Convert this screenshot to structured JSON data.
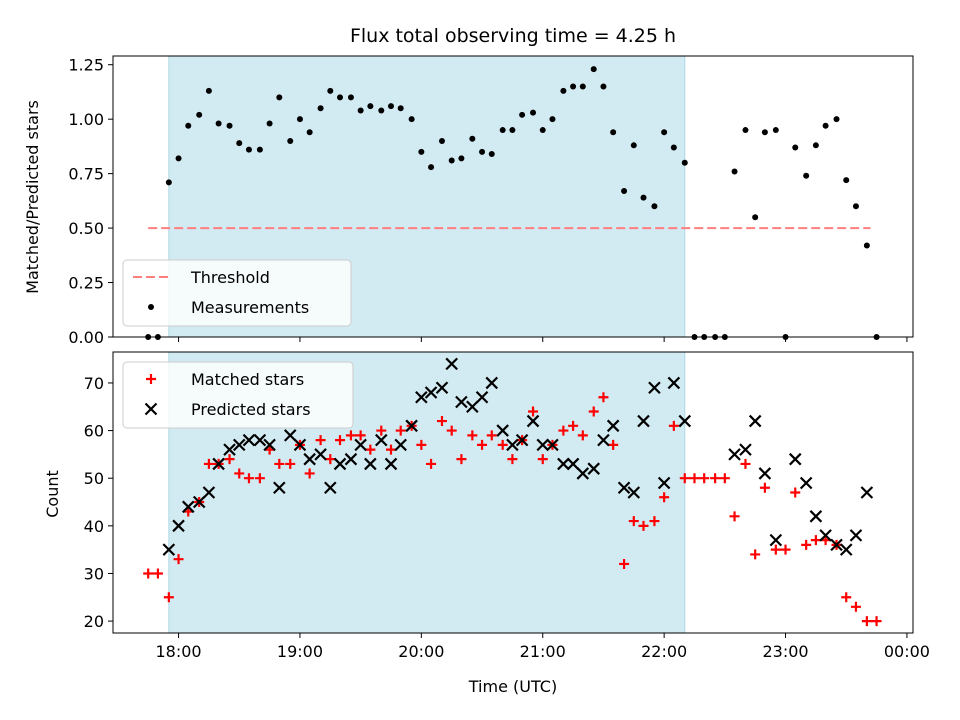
{
  "chart_data": {
    "title": "Flux total observing time = 4.25 h",
    "xlabel": "Time (UTC)",
    "x_ticks": [
      "18:00",
      "19:00",
      "20:00",
      "21:00",
      "22:00",
      "23:00",
      "00:00"
    ],
    "x_tick_hours": [
      18,
      19,
      20,
      21,
      22,
      23,
      24
    ],
    "xlim_hours": [
      17.46,
      24.05
    ],
    "shaded_interval_hours": [
      17.92,
      22.17
    ],
    "colors": {
      "threshold": "#ff7f7f",
      "measurements": "#000000",
      "matched": "#ff0000",
      "predicted": "#000000",
      "shade": "#add8e6"
    },
    "panels": [
      {
        "type": "scatter",
        "ylabel": "Matched/Predicted stars",
        "ylim": [
          0,
          1.29
        ],
        "y_ticks": [
          "0.00",
          "0.25",
          "0.50",
          "0.75",
          "1.00",
          "1.25"
        ],
        "y_tick_values": [
          0,
          0.25,
          0.5,
          0.75,
          1.0,
          1.25
        ],
        "legend_position": "lower-left",
        "threshold": {
          "name": "Threshold",
          "value": 0.5,
          "x_range_hours": [
            17.75,
            23.7
          ]
        },
        "series": [
          {
            "name": "Measurements",
            "points": [
              [
                17.75,
                0.0
              ],
              [
                17.83,
                0.0
              ],
              [
                17.92,
                0.71
              ],
              [
                18.0,
                0.82
              ],
              [
                18.08,
                0.97
              ],
              [
                18.17,
                1.02
              ],
              [
                18.25,
                1.13
              ],
              [
                18.33,
                0.98
              ],
              [
                18.42,
                0.97
              ],
              [
                18.5,
                0.89
              ],
              [
                18.58,
                0.86
              ],
              [
                18.67,
                0.86
              ],
              [
                18.75,
                0.98
              ],
              [
                18.83,
                1.1
              ],
              [
                18.92,
                0.9
              ],
              [
                19.0,
                1.0
              ],
              [
                19.08,
                0.94
              ],
              [
                19.17,
                1.05
              ],
              [
                19.25,
                1.13
              ],
              [
                19.33,
                1.1
              ],
              [
                19.42,
                1.1
              ],
              [
                19.5,
                1.04
              ],
              [
                19.58,
                1.06
              ],
              [
                19.67,
                1.04
              ],
              [
                19.75,
                1.06
              ],
              [
                19.83,
                1.05
              ],
              [
                19.92,
                1.0
              ],
              [
                20.0,
                0.85
              ],
              [
                20.08,
                0.78
              ],
              [
                20.17,
                0.9
              ],
              [
                20.25,
                0.81
              ],
              [
                20.33,
                0.82
              ],
              [
                20.42,
                0.91
              ],
              [
                20.5,
                0.85
              ],
              [
                20.58,
                0.84
              ],
              [
                20.67,
                0.95
              ],
              [
                20.75,
                0.95
              ],
              [
                20.83,
                1.02
              ],
              [
                20.92,
                1.03
              ],
              [
                21.0,
                0.95
              ],
              [
                21.08,
                1.0
              ],
              [
                21.17,
                1.13
              ],
              [
                21.25,
                1.15
              ],
              [
                21.33,
                1.15
              ],
              [
                21.42,
                1.23
              ],
              [
                21.5,
                1.15
              ],
              [
                21.58,
                0.94
              ],
              [
                21.67,
                0.67
              ],
              [
                21.75,
                0.88
              ],
              [
                21.83,
                0.64
              ],
              [
                21.92,
                0.6
              ],
              [
                22.0,
                0.94
              ],
              [
                22.08,
                0.87
              ],
              [
                22.17,
                0.8
              ],
              [
                22.25,
                0.0
              ],
              [
                22.33,
                0.0
              ],
              [
                22.42,
                0.0
              ],
              [
                22.5,
                0.0
              ],
              [
                22.58,
                0.76
              ],
              [
                22.67,
                0.95
              ],
              [
                22.75,
                0.55
              ],
              [
                22.83,
                0.94
              ],
              [
                22.92,
                0.95
              ],
              [
                23.0,
                0.0
              ],
              [
                23.08,
                0.87
              ],
              [
                23.17,
                0.74
              ],
              [
                23.25,
                0.88
              ],
              [
                23.33,
                0.97
              ],
              [
                23.42,
                1.0
              ],
              [
                23.5,
                0.72
              ],
              [
                23.58,
                0.6
              ],
              [
                23.67,
                0.42
              ],
              [
                23.75,
                0.0
              ]
            ]
          }
        ]
      },
      {
        "type": "scatter",
        "ylabel": "Count",
        "ylim": [
          17.5,
          76.5
        ],
        "y_ticks": [
          "20",
          "30",
          "40",
          "50",
          "60",
          "70"
        ],
        "y_tick_values": [
          20,
          30,
          40,
          50,
          60,
          70
        ],
        "legend_position": "upper-left",
        "series": [
          {
            "name": "Matched stars",
            "marker": "plus",
            "points": [
              [
                17.75,
                30
              ],
              [
                17.83,
                30
              ],
              [
                17.92,
                25
              ],
              [
                18.0,
                33
              ],
              [
                18.08,
                43
              ],
              [
                18.17,
                45
              ],
              [
                18.25,
                53
              ],
              [
                18.33,
                53
              ],
              [
                18.42,
                54
              ],
              [
                18.5,
                51
              ],
              [
                18.58,
                50
              ],
              [
                18.67,
                50
              ],
              [
                18.75,
                56
              ],
              [
                18.83,
                53
              ],
              [
                18.92,
                53
              ],
              [
                19.0,
                57
              ],
              [
                19.08,
                51
              ],
              [
                19.17,
                58
              ],
              [
                19.25,
                54
              ],
              [
                19.33,
                58
              ],
              [
                19.42,
                59
              ],
              [
                19.5,
                59
              ],
              [
                19.58,
                56
              ],
              [
                19.67,
                60
              ],
              [
                19.75,
                56
              ],
              [
                19.83,
                60
              ],
              [
                19.92,
                61
              ],
              [
                20.0,
                57
              ],
              [
                20.08,
                53
              ],
              [
                20.17,
                62
              ],
              [
                20.25,
                60
              ],
              [
                20.33,
                54
              ],
              [
                20.42,
                59
              ],
              [
                20.5,
                57
              ],
              [
                20.58,
                59
              ],
              [
                20.67,
                57
              ],
              [
                20.75,
                54
              ],
              [
                20.83,
                58
              ],
              [
                20.92,
                64
              ],
              [
                21.0,
                54
              ],
              [
                21.08,
                57
              ],
              [
                21.17,
                60
              ],
              [
                21.25,
                61
              ],
              [
                21.33,
                59
              ],
              [
                21.42,
                64
              ],
              [
                21.5,
                67
              ],
              [
                21.58,
                57
              ],
              [
                21.67,
                32
              ],
              [
                21.75,
                41
              ],
              [
                21.83,
                40
              ],
              [
                21.92,
                41
              ],
              [
                22.0,
                46
              ],
              [
                22.08,
                61
              ],
              [
                22.17,
                50
              ],
              [
                22.25,
                50
              ],
              [
                22.33,
                50
              ],
              [
                22.42,
                50
              ],
              [
                22.5,
                50
              ],
              [
                22.58,
                42
              ],
              [
                22.67,
                53
              ],
              [
                22.75,
                34
              ],
              [
                22.83,
                48
              ],
              [
                22.92,
                35
              ],
              [
                23.0,
                35
              ],
              [
                23.08,
                47
              ],
              [
                23.17,
                36
              ],
              [
                23.25,
                37
              ],
              [
                23.33,
                37
              ],
              [
                23.42,
                36
              ],
              [
                23.5,
                25
              ],
              [
                23.58,
                23
              ],
              [
                23.67,
                20
              ],
              [
                23.75,
                20
              ]
            ]
          },
          {
            "name": "Predicted stars",
            "marker": "x",
            "points": [
              [
                17.92,
                35
              ],
              [
                18.0,
                40
              ],
              [
                18.08,
                44
              ],
              [
                18.17,
                45
              ],
              [
                18.25,
                47
              ],
              [
                18.33,
                53
              ],
              [
                18.42,
                56
              ],
              [
                18.5,
                57
              ],
              [
                18.58,
                58
              ],
              [
                18.67,
                58
              ],
              [
                18.75,
                57
              ],
              [
                18.83,
                48
              ],
              [
                18.92,
                59
              ],
              [
                19.0,
                57
              ],
              [
                19.08,
                54
              ],
              [
                19.17,
                55
              ],
              [
                19.25,
                48
              ],
              [
                19.33,
                53
              ],
              [
                19.42,
                54
              ],
              [
                19.5,
                57
              ],
              [
                19.58,
                53
              ],
              [
                19.67,
                58
              ],
              [
                19.75,
                53
              ],
              [
                19.83,
                57
              ],
              [
                19.92,
                61
              ],
              [
                20.0,
                67
              ],
              [
                20.08,
                68
              ],
              [
                20.17,
                69
              ],
              [
                20.25,
                74
              ],
              [
                20.33,
                66
              ],
              [
                20.42,
                65
              ],
              [
                20.5,
                67
              ],
              [
                20.58,
                70
              ],
              [
                20.67,
                60
              ],
              [
                20.75,
                57
              ],
              [
                20.83,
                58
              ],
              [
                20.92,
                62
              ],
              [
                21.0,
                57
              ],
              [
                21.08,
                57
              ],
              [
                21.17,
                53
              ],
              [
                21.25,
                53
              ],
              [
                21.33,
                51
              ],
              [
                21.42,
                52
              ],
              [
                21.5,
                58
              ],
              [
                21.58,
                61
              ],
              [
                21.67,
                48
              ],
              [
                21.75,
                47
              ],
              [
                21.83,
                62
              ],
              [
                21.92,
                69
              ],
              [
                22.0,
                49
              ],
              [
                22.08,
                70
              ],
              [
                22.17,
                62
              ],
              [
                22.58,
                55
              ],
              [
                22.67,
                56
              ],
              [
                22.75,
                62
              ],
              [
                22.83,
                51
              ],
              [
                22.92,
                37
              ],
              [
                23.08,
                54
              ],
              [
                23.17,
                49
              ],
              [
                23.25,
                42
              ],
              [
                23.33,
                38
              ],
              [
                23.42,
                36
              ],
              [
                23.5,
                35
              ],
              [
                23.58,
                38
              ],
              [
                23.67,
                47
              ]
            ]
          }
        ]
      }
    ]
  }
}
